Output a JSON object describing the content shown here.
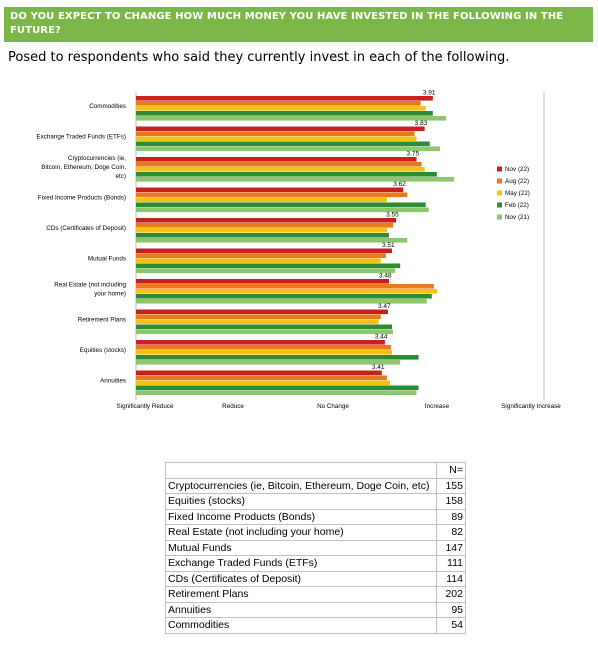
{
  "header": {
    "question": "DO YOU EXPECT TO CHANGE HOW MUCH MONEY YOU HAVE INVESTED IN THE FOLLOWING IN THE FUTURE?",
    "subtitle": "Posed to respondents who said they currently invest in each of the following."
  },
  "colors": {
    "banner": "#7ab648",
    "Nov (22)": "#c8201e",
    "Aug (22)": "#e8791c",
    "May (22)": "#f2c216",
    "Feb (22)": "#2e8b34",
    "Nov (21)": "#8cc770"
  },
  "chart_data": {
    "type": "bar",
    "orientation": "horizontal",
    "categories": [
      "Commodities",
      "Exchange Traded Funds (ETFs)",
      "Cryptocurrencies (ie, Bitcoin, Ethereum, Doge Coin, etc)",
      "Fixed Income Products (Bonds)",
      "CDs (Certificates of Deposit)",
      "Mutual Funds",
      "Real Estate (not including your home)",
      "Retirement Plans",
      "Equities (stocks)",
      "Annuities"
    ],
    "x_ticks": [
      "Significantly Reduce",
      "Reduce",
      "No Change",
      "Increase",
      "Significantly Increase"
    ],
    "xlim": [
      1,
      5
    ],
    "series": [
      {
        "name": "Nov (22)",
        "values": [
          3.91,
          3.83,
          3.75,
          3.62,
          3.55,
          3.51,
          3.48,
          3.47,
          3.44,
          3.41
        ]
      },
      {
        "name": "Aug (22)",
        "values": [
          3.79,
          3.73,
          3.8,
          3.66,
          3.52,
          3.45,
          3.92,
          3.4,
          3.5,
          3.46
        ]
      },
      {
        "name": "May (22)",
        "values": [
          3.84,
          3.75,
          3.83,
          3.46,
          3.46,
          3.4,
          3.95,
          3.38,
          3.51,
          3.49
        ]
      },
      {
        "name": "Feb (22)",
        "values": [
          3.91,
          3.88,
          3.95,
          3.84,
          3.48,
          3.59,
          3.9,
          3.51,
          3.77,
          3.77
        ]
      },
      {
        "name": "Nov (21)",
        "values": [
          4.04,
          3.98,
          4.12,
          3.87,
          3.66,
          3.54,
          3.85,
          3.52,
          3.59,
          3.75
        ]
      }
    ],
    "data_labels": [
      "3.91",
      "3.83",
      "3.75",
      "3.62",
      "3.55",
      "3.51",
      "3.48",
      "3.47",
      "3.44",
      "3.41"
    ],
    "legend": "right",
    "grid": false
  },
  "n_table": {
    "header": "N=",
    "rows": [
      {
        "label": "Cryptocurrencies (ie, Bitcoin, Ethereum, Doge Coin, etc)",
        "n": "155"
      },
      {
        "label": "Equities (stocks)",
        "n": "158"
      },
      {
        "label": "Fixed Income Products (Bonds)",
        "n": "89"
      },
      {
        "label": "Real Estate (not including your home)",
        "n": "82"
      },
      {
        "label": "Mutual Funds",
        "n": "147"
      },
      {
        "label": "Exchange Traded Funds (ETFs)",
        "n": "111"
      },
      {
        "label": "CDs (Certificates of Deposit)",
        "n": "114"
      },
      {
        "label": "Retirement Plans",
        "n": "202"
      },
      {
        "label": "Annuities",
        "n": "95"
      },
      {
        "label": "Commodities",
        "n": "54"
      }
    ]
  }
}
